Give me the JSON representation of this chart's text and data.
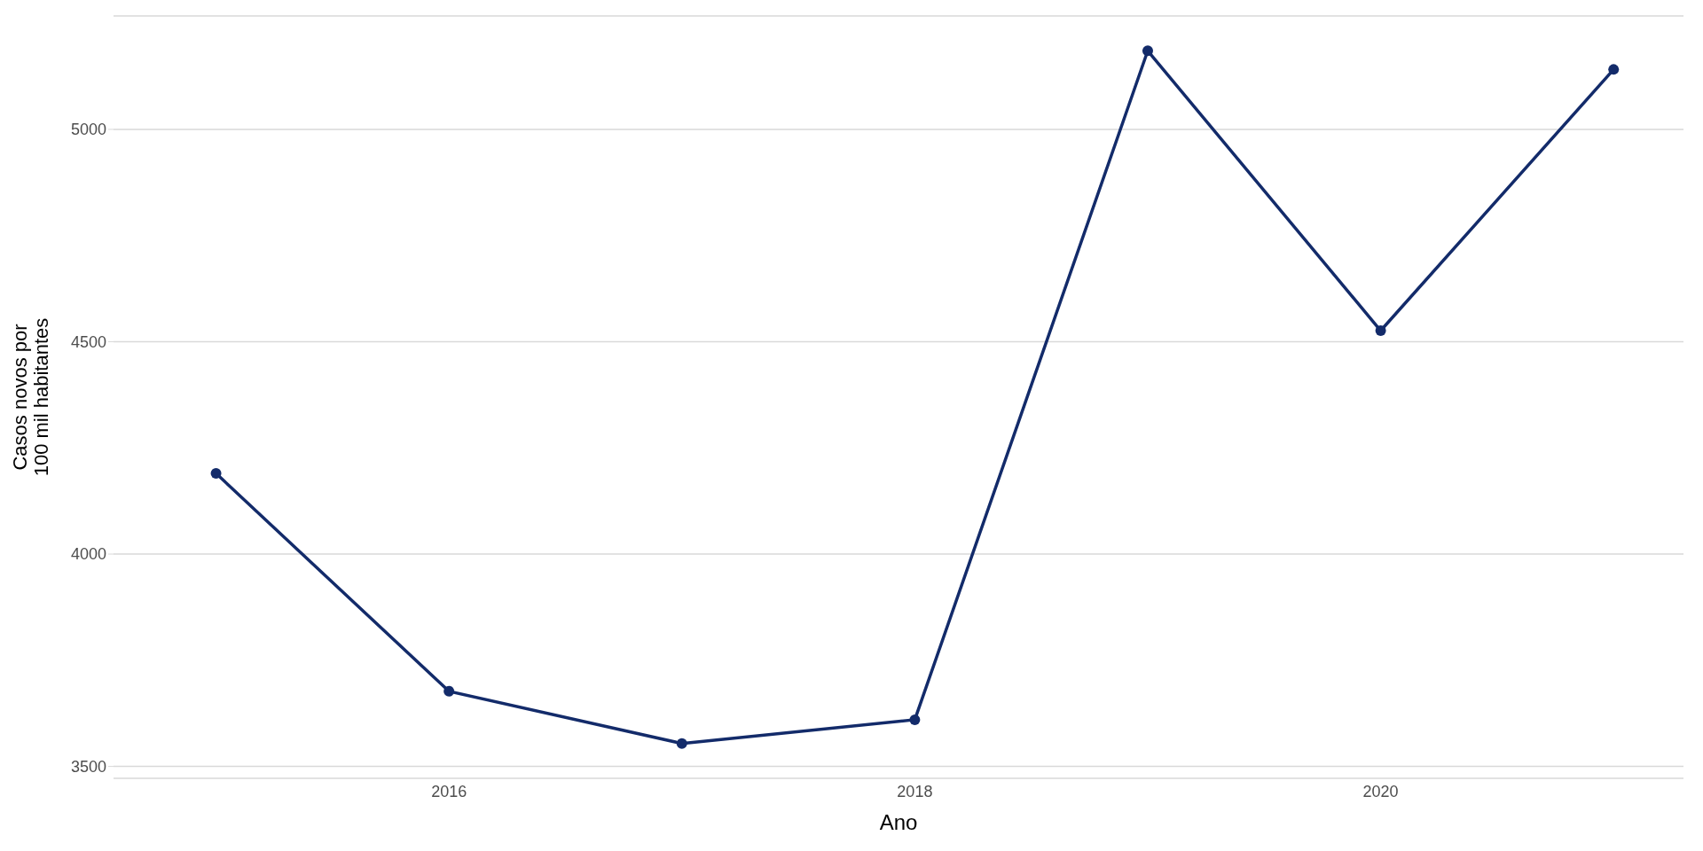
{
  "chart_data": {
    "type": "line",
    "xlabel": "Ano",
    "ylabel": "Casos novos por\n100 mil habitantes",
    "x": [
      2015,
      2016,
      2017,
      2018,
      2019,
      2020,
      2021
    ],
    "series": [
      {
        "color": "#132b6a",
        "values": [
          4190,
          3677,
          3554,
          3610,
          5185,
          4526,
          5141
        ]
      }
    ],
    "xlim": [
      2014.56,
      2021.3
    ],
    "xticks": [
      2016,
      2018,
      2020
    ],
    "ylim": [
      3472,
      5267
    ],
    "yticks": [
      3500,
      4000,
      4500,
      5000
    ],
    "grid": "y",
    "legend": false,
    "marker": "circle",
    "line_style": "solid"
  }
}
